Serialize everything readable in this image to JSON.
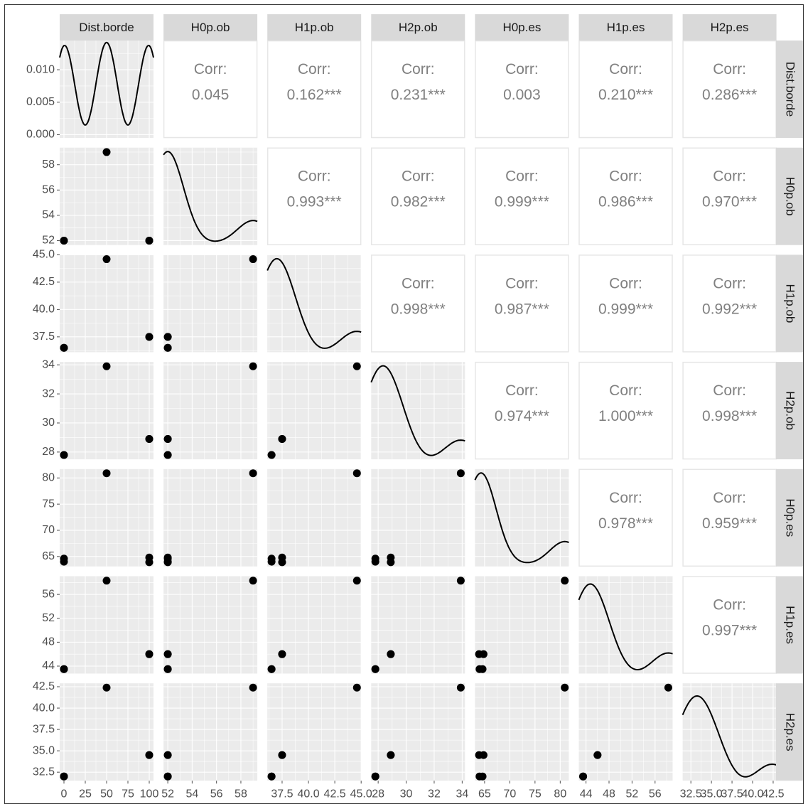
{
  "chart_data": {
    "type": "scatter-matrix",
    "variables": [
      "Dist.borde",
      "H0p.ob",
      "H1p.ob",
      "H2p.ob",
      "H0p.es",
      "H1p.es",
      "H2p.es"
    ],
    "observations": [
      {
        "Dist.borde": 0,
        "H0p.ob": 52.0,
        "H1p.ob": 36.5,
        "H2p.ob": 27.8,
        "H0p.es": 64.6,
        "H1p.es": 43.5,
        "H2p.es": 32.0
      },
      {
        "Dist.borde": 50,
        "H0p.ob": 59.0,
        "H1p.ob": 44.6,
        "H2p.ob": 33.9,
        "H0p.es": 80.9,
        "H1p.es": 58.3,
        "H2p.es": 42.4
      },
      {
        "Dist.borde": 100,
        "H0p.ob": 52.0,
        "H1p.ob": 37.5,
        "H2p.ob": 28.9,
        "H0p.es": 63.9,
        "H1p.es": 46.0,
        "H2p.es": 34.5
      },
      {
        "Dist.borde": 0,
        "H0p.ob": 52.0,
        "H1p.ob": 36.5,
        "H2p.ob": 27.8,
        "H0p.es": 64.0,
        "H1p.es": 43.5,
        "H2p.es": 32.0
      },
      {
        "Dist.borde": 100,
        "H0p.ob": 52.0,
        "H1p.ob": 37.5,
        "H2p.ob": 28.9,
        "H0p.es": 64.8,
        "H1p.es": 46.0,
        "H2p.es": 34.5
      }
    ],
    "axes": [
      {
        "var": "Dist.borde",
        "range": [
          -5,
          105
        ],
        "ticks": [
          0,
          25,
          50,
          75,
          100
        ],
        "tick_labels": [
          "0",
          "25",
          "50",
          "75",
          "100"
        ]
      },
      {
        "var": "H0p.ob",
        "range": [
          51.65,
          59.35
        ],
        "ticks": [
          52,
          54,
          56,
          58
        ],
        "tick_labels": [
          "52",
          "54",
          "56",
          "58"
        ]
      },
      {
        "var": "H1p.ob",
        "range": [
          36.1,
          45.0
        ],
        "ticks": [
          37.5,
          40.0,
          42.5,
          45.0
        ],
        "tick_labels": [
          "37.5",
          "40.0",
          "42.5",
          "45.0"
        ]
      },
      {
        "var": "H2p.ob",
        "range": [
          27.5,
          34.2
        ],
        "ticks": [
          28,
          30,
          32,
          34
        ],
        "tick_labels": [
          "28",
          "30",
          "32",
          "34"
        ]
      },
      {
        "var": "H0p.es",
        "range": [
          63.1,
          81.7
        ],
        "ticks": [
          65,
          70,
          75,
          80
        ],
        "tick_labels": [
          "65",
          "70",
          "75",
          "80"
        ]
      },
      {
        "var": "H1p.es",
        "range": [
          42.75,
          59.05
        ],
        "ticks": [
          44,
          48,
          52,
          56
        ],
        "tick_labels": [
          "44",
          "48",
          "52",
          "56"
        ]
      },
      {
        "var": "H2p.es",
        "range": [
          31.5,
          42.9
        ],
        "ticks": [
          32.5,
          35.0,
          37.5,
          40.0,
          42.5
        ],
        "tick_labels": [
          "32.5",
          "35.0",
          "37.5",
          "40.0",
          "42.5"
        ]
      }
    ],
    "density_yaxis": {
      "range": [
        -0.0005,
        0.0145
      ],
      "ticks": [
        0.0,
        0.005,
        0.01
      ],
      "tick_labels": [
        "0.000",
        "0.005",
        "0.010"
      ]
    },
    "density_curves": [
      {
        "var": "Dist.borde",
        "peak_centers": [
          0,
          50,
          100
        ],
        "peak_weights": [
          1,
          1,
          1
        ],
        "bandwidth": 17,
        "edge": [
          0.0142,
          0.012
        ],
        "min": 0.0015
      },
      {
        "var": "H0p.ob",
        "peak_centers": [
          52,
          59
        ],
        "peak_weights": [
          4,
          1
        ],
        "bandwidth": 1.3,
        "top_frac": 0.96,
        "end_frac": 0.42
      },
      {
        "var": "H1p.ob",
        "peak_centers": [
          36.5,
          37.5,
          44.6
        ],
        "peak_weights": [
          2,
          2,
          1
        ],
        "bandwidth": 1.7,
        "top_frac": 0.96,
        "end_frac": 0.5
      },
      {
        "var": "H2p.ob",
        "peak_centers": [
          27.8,
          28.9,
          33.9
        ],
        "peak_weights": [
          2,
          2,
          1
        ],
        "bandwidth": 1.3,
        "top_frac": 0.96,
        "end_frac": 0.58
      },
      {
        "var": "H0p.es",
        "peak_centers": [
          64.3,
          80.9
        ],
        "peak_weights": [
          4,
          1
        ],
        "bandwidth": 3.0,
        "top_frac": 0.96,
        "end_frac": 0.5
      },
      {
        "var": "H1p.es",
        "peak_centers": [
          43.5,
          46.0,
          58.3
        ],
        "peak_weights": [
          2,
          2,
          1
        ],
        "bandwidth": 3.0,
        "top_frac": 0.92,
        "end_frac": 0.6
      },
      {
        "var": "H2p.es",
        "peak_centers": [
          32.0,
          34.5,
          42.4
        ],
        "peak_weights": [
          2,
          2,
          1
        ],
        "bandwidth": 2.2,
        "top_frac": 0.87,
        "end_frac": 0.78
      }
    ],
    "correlations": [
      {
        "row": "Dist.borde",
        "col": "H0p.ob",
        "label": "Corr:",
        "value": "0.045"
      },
      {
        "row": "Dist.borde",
        "col": "H1p.ob",
        "label": "Corr:",
        "value": "0.162***"
      },
      {
        "row": "Dist.borde",
        "col": "H2p.ob",
        "label": "Corr:",
        "value": "0.231***"
      },
      {
        "row": "Dist.borde",
        "col": "H0p.es",
        "label": "Corr:",
        "value": "0.003"
      },
      {
        "row": "Dist.borde",
        "col": "H1p.es",
        "label": "Corr:",
        "value": "0.210***"
      },
      {
        "row": "Dist.borde",
        "col": "H2p.es",
        "label": "Corr:",
        "value": "0.286***"
      },
      {
        "row": "H0p.ob",
        "col": "H1p.ob",
        "label": "Corr:",
        "value": "0.993***"
      },
      {
        "row": "H0p.ob",
        "col": "H2p.ob",
        "label": "Corr:",
        "value": "0.982***"
      },
      {
        "row": "H0p.ob",
        "col": "H0p.es",
        "label": "Corr:",
        "value": "0.999***"
      },
      {
        "row": "H0p.ob",
        "col": "H1p.es",
        "label": "Corr:",
        "value": "0.986***"
      },
      {
        "row": "H0p.ob",
        "col": "H2p.es",
        "label": "Corr:",
        "value": "0.970***"
      },
      {
        "row": "H1p.ob",
        "col": "H2p.ob",
        "label": "Corr:",
        "value": "0.998***"
      },
      {
        "row": "H1p.ob",
        "col": "H0p.es",
        "label": "Corr:",
        "value": "0.987***"
      },
      {
        "row": "H1p.ob",
        "col": "H1p.es",
        "label": "Corr:",
        "value": "0.999***"
      },
      {
        "row": "H1p.ob",
        "col": "H2p.es",
        "label": "Corr:",
        "value": "0.992***"
      },
      {
        "row": "H2p.ob",
        "col": "H0p.es",
        "label": "Corr:",
        "value": "0.974***"
      },
      {
        "row": "H2p.ob",
        "col": "H1p.es",
        "label": "Corr:",
        "value": "1.000***"
      },
      {
        "row": "H2p.ob",
        "col": "H2p.es",
        "label": "Corr:",
        "value": "0.998***"
      },
      {
        "row": "H0p.es",
        "col": "H1p.es",
        "label": "Corr:",
        "value": "0.978***"
      },
      {
        "row": "H0p.es",
        "col": "H2p.es",
        "label": "Corr:",
        "value": "0.959***"
      },
      {
        "row": "H1p.es",
        "col": "H2p.es",
        "label": "Corr:",
        "value": "0.997***"
      }
    ],
    "colors": {
      "panel_bg": "#EBEBEB",
      "grid": "#FFFFFF",
      "strip_bg": "#D9D9D9",
      "strip_text": "#1A1A1A",
      "corr_text": "#808080",
      "corr_border": "#E6E6E6",
      "axis_text": "#4D4D4D",
      "point": "#000000",
      "line": "#000000",
      "frame": "#333333"
    }
  }
}
